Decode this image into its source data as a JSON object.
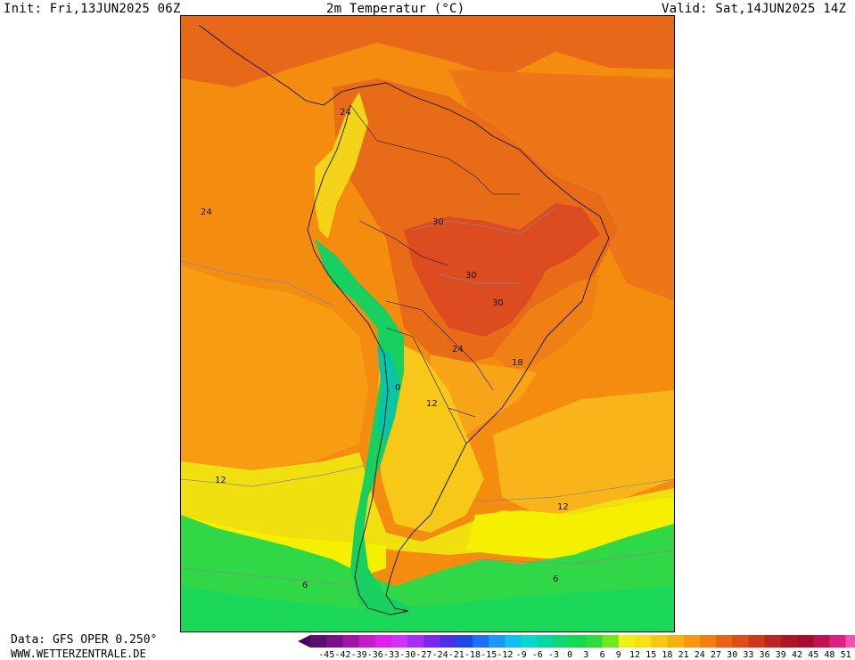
{
  "header": {
    "init": "Init: Fri,13JUN2025 06Z",
    "title": "2m Temperatur (°C)",
    "valid": "Valid: Sat,14JUN2025 14Z"
  },
  "footer": {
    "data_source": "Data: GFS OPER 0.250°",
    "website": "WWW.WETTERZENTRALE.DE"
  },
  "map": {
    "region": "South America",
    "contour_labels": [
      {
        "text": "24",
        "id": "label-24-colombia"
      },
      {
        "text": "24",
        "id": "label-24-pacific"
      },
      {
        "text": "30",
        "id": "label-30-north"
      },
      {
        "text": "30",
        "id": "label-30-center"
      },
      {
        "text": "30",
        "id": "label-30-east"
      },
      {
        "text": "24",
        "id": "label-24-south"
      },
      {
        "text": "18",
        "id": "label-18-brazil"
      },
      {
        "text": "0",
        "id": "label-0-andes"
      },
      {
        "text": "12",
        "id": "label-12-argentina"
      },
      {
        "text": "12",
        "id": "label-12-pacific"
      },
      {
        "text": "12",
        "id": "label-12-atlantic"
      },
      {
        "text": "6",
        "id": "label-6-pacific"
      },
      {
        "text": "6",
        "id": "label-6-atlantic"
      }
    ]
  },
  "legend": {
    "ticks": [
      "-45",
      "-42",
      "-39",
      "-36",
      "-33",
      "-30",
      "-27",
      "-24",
      "-21",
      "-18",
      "-15",
      "-12",
      "-9",
      "-6",
      "-3",
      "0",
      "3",
      "6",
      "9",
      "12",
      "15",
      "18",
      "21",
      "24",
      "27",
      "30",
      "33",
      "36",
      "39",
      "42",
      "45",
      "48",
      "51"
    ],
    "colors": [
      "#5a0f6e",
      "#7a1188",
      "#a015a8",
      "#c21ccb",
      "#e01fe6",
      "#d030f8",
      "#a82cf6",
      "#7a28ee",
      "#4d2ee6",
      "#2048e6",
      "#1a70f0",
      "#1a98f4",
      "#10c0f0",
      "#0ad8d0",
      "#08d8a0",
      "#10d870",
      "#18d850",
      "#30dc38",
      "#70e81c",
      "#f0f018",
      "#f8e018",
      "#f8c818",
      "#f8b010",
      "#f89810",
      "#f07e10",
      "#e86414",
      "#e04c18",
      "#d0381c",
      "#c02420",
      "#b01424",
      "#a80c30",
      "#c01050",
      "#e02080",
      "#f050b0"
    ],
    "under_color": "#4a0060",
    "over_color": "#ff30b8"
  },
  "colors": {
    "temp_30": "#e04c20",
    "temp_27": "#e8641a",
    "temp_24": "#f07e14",
    "temp_21": "#f49010",
    "temp_18": "#f8a818",
    "temp_15": "#f8c418",
    "temp_12": "#f4e010",
    "temp_9": "#f0f000",
    "temp_6": "#30d848",
    "temp_3": "#18d858",
    "temp_0": "#08c8a0"
  }
}
